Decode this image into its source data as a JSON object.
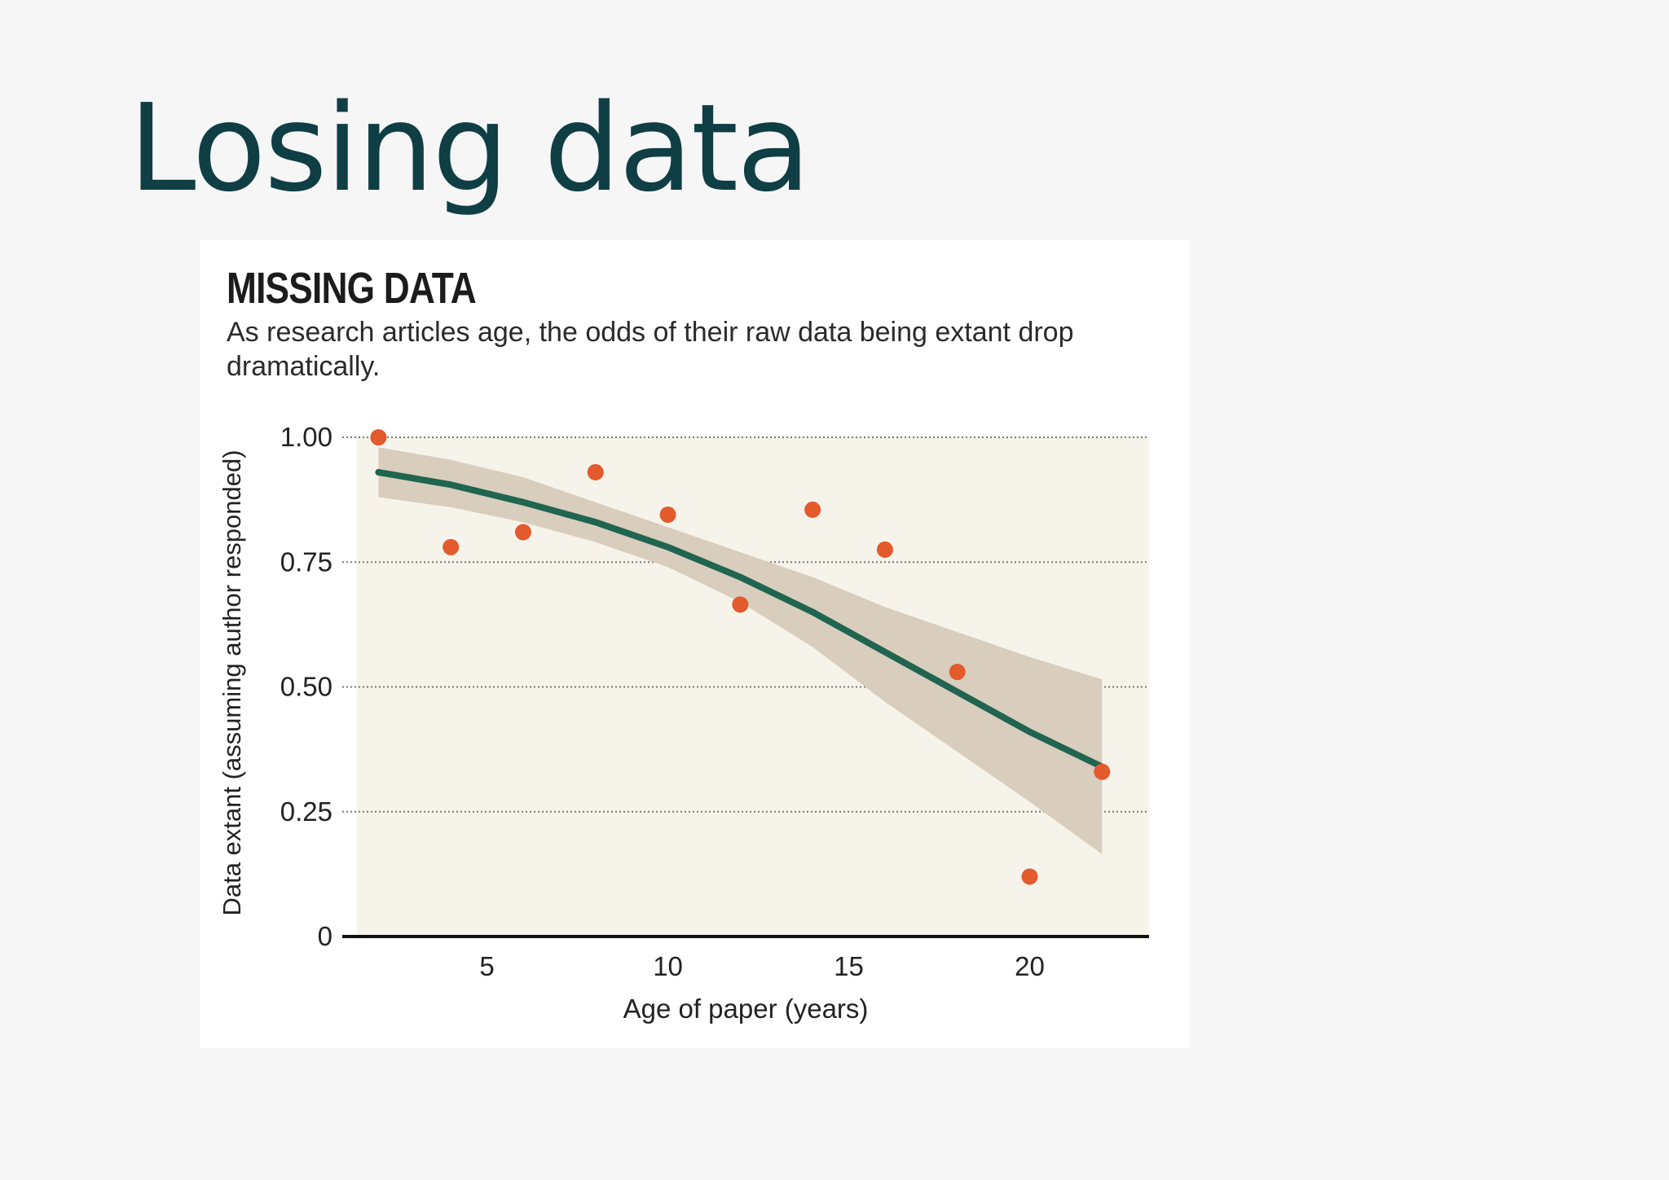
{
  "slide": {
    "title": "Losing data"
  },
  "chart_data": {
    "type": "scatter",
    "title": "MISSING DATA",
    "subtitle": "As research articles age, the odds of their raw data being extant drop dramatically.",
    "xlabel": "Age of paper (years)",
    "ylabel": "Data extant (assuming author responded)",
    "xlim": [
      1,
      23.3
    ],
    "ylim": [
      0,
      1.0
    ],
    "xticks": [
      5,
      10,
      15,
      20
    ],
    "xtick_labels": [
      "5",
      "10",
      "15",
      "20"
    ],
    "yticks": [
      0,
      0.25,
      0.5,
      0.75,
      1.0
    ],
    "ytick_labels": [
      "0",
      "0.25",
      "0.50",
      "0.75",
      "1.00"
    ],
    "grid": "horizontal dotted",
    "points": [
      {
        "x": 2,
        "y": 1.0
      },
      {
        "x": 4,
        "y": 0.78
      },
      {
        "x": 6,
        "y": 0.81
      },
      {
        "x": 8,
        "y": 0.93
      },
      {
        "x": 10,
        "y": 0.845
      },
      {
        "x": 12,
        "y": 0.665
      },
      {
        "x": 14,
        "y": 0.855
      },
      {
        "x": 16,
        "y": 0.775
      },
      {
        "x": 18,
        "y": 0.53
      },
      {
        "x": 20,
        "y": 0.12
      },
      {
        "x": 22,
        "y": 0.33
      }
    ],
    "fit_line": {
      "x": [
        2,
        4,
        6,
        8,
        10,
        12,
        14,
        16,
        18,
        20,
        22
      ],
      "y": [
        0.93,
        0.905,
        0.87,
        0.83,
        0.78,
        0.72,
        0.65,
        0.57,
        0.49,
        0.41,
        0.34
      ]
    },
    "confidence_band": {
      "x": [
        2,
        4,
        6,
        8,
        10,
        12,
        14,
        16,
        18,
        20,
        22
      ],
      "lower": [
        0.88,
        0.86,
        0.83,
        0.79,
        0.74,
        0.67,
        0.58,
        0.47,
        0.37,
        0.27,
        0.165
      ],
      "upper": [
        0.98,
        0.955,
        0.92,
        0.87,
        0.82,
        0.77,
        0.72,
        0.66,
        0.61,
        0.56,
        0.515
      ]
    },
    "colors": {
      "points": "#e35a2c",
      "fit_line": "#1f6550",
      "band": "#d9cdbd",
      "plot_bg": "#f6f3ea",
      "axis": "#111111",
      "grid": "#777777"
    }
  }
}
